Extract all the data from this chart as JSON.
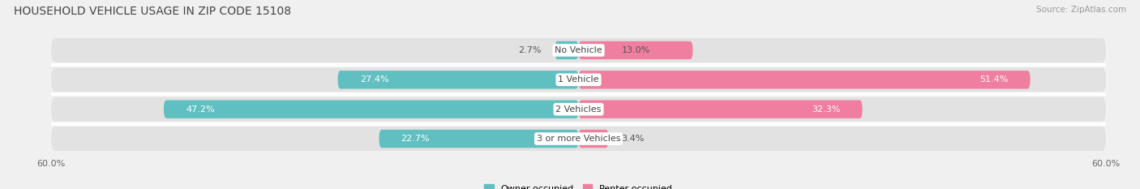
{
  "title": "HOUSEHOLD VEHICLE USAGE IN ZIP CODE 15108",
  "source": "Source: ZipAtlas.com",
  "categories": [
    "No Vehicle",
    "1 Vehicle",
    "2 Vehicles",
    "3 or more Vehicles"
  ],
  "owner_values": [
    2.7,
    27.4,
    47.2,
    22.7
  ],
  "renter_values": [
    13.0,
    51.4,
    32.3,
    3.4
  ],
  "owner_color": "#60bfc0",
  "renter_color": "#f07ea0",
  "background_color": "#f0f0f0",
  "bar_bg_color": "#e2e2e2",
  "xlim": 60.0,
  "legend_owner": "Owner-occupied",
  "legend_renter": "Renter-occupied",
  "title_fontsize": 10,
  "source_fontsize": 7.5,
  "label_fontsize": 8,
  "category_fontsize": 8,
  "axis_label_fontsize": 8
}
